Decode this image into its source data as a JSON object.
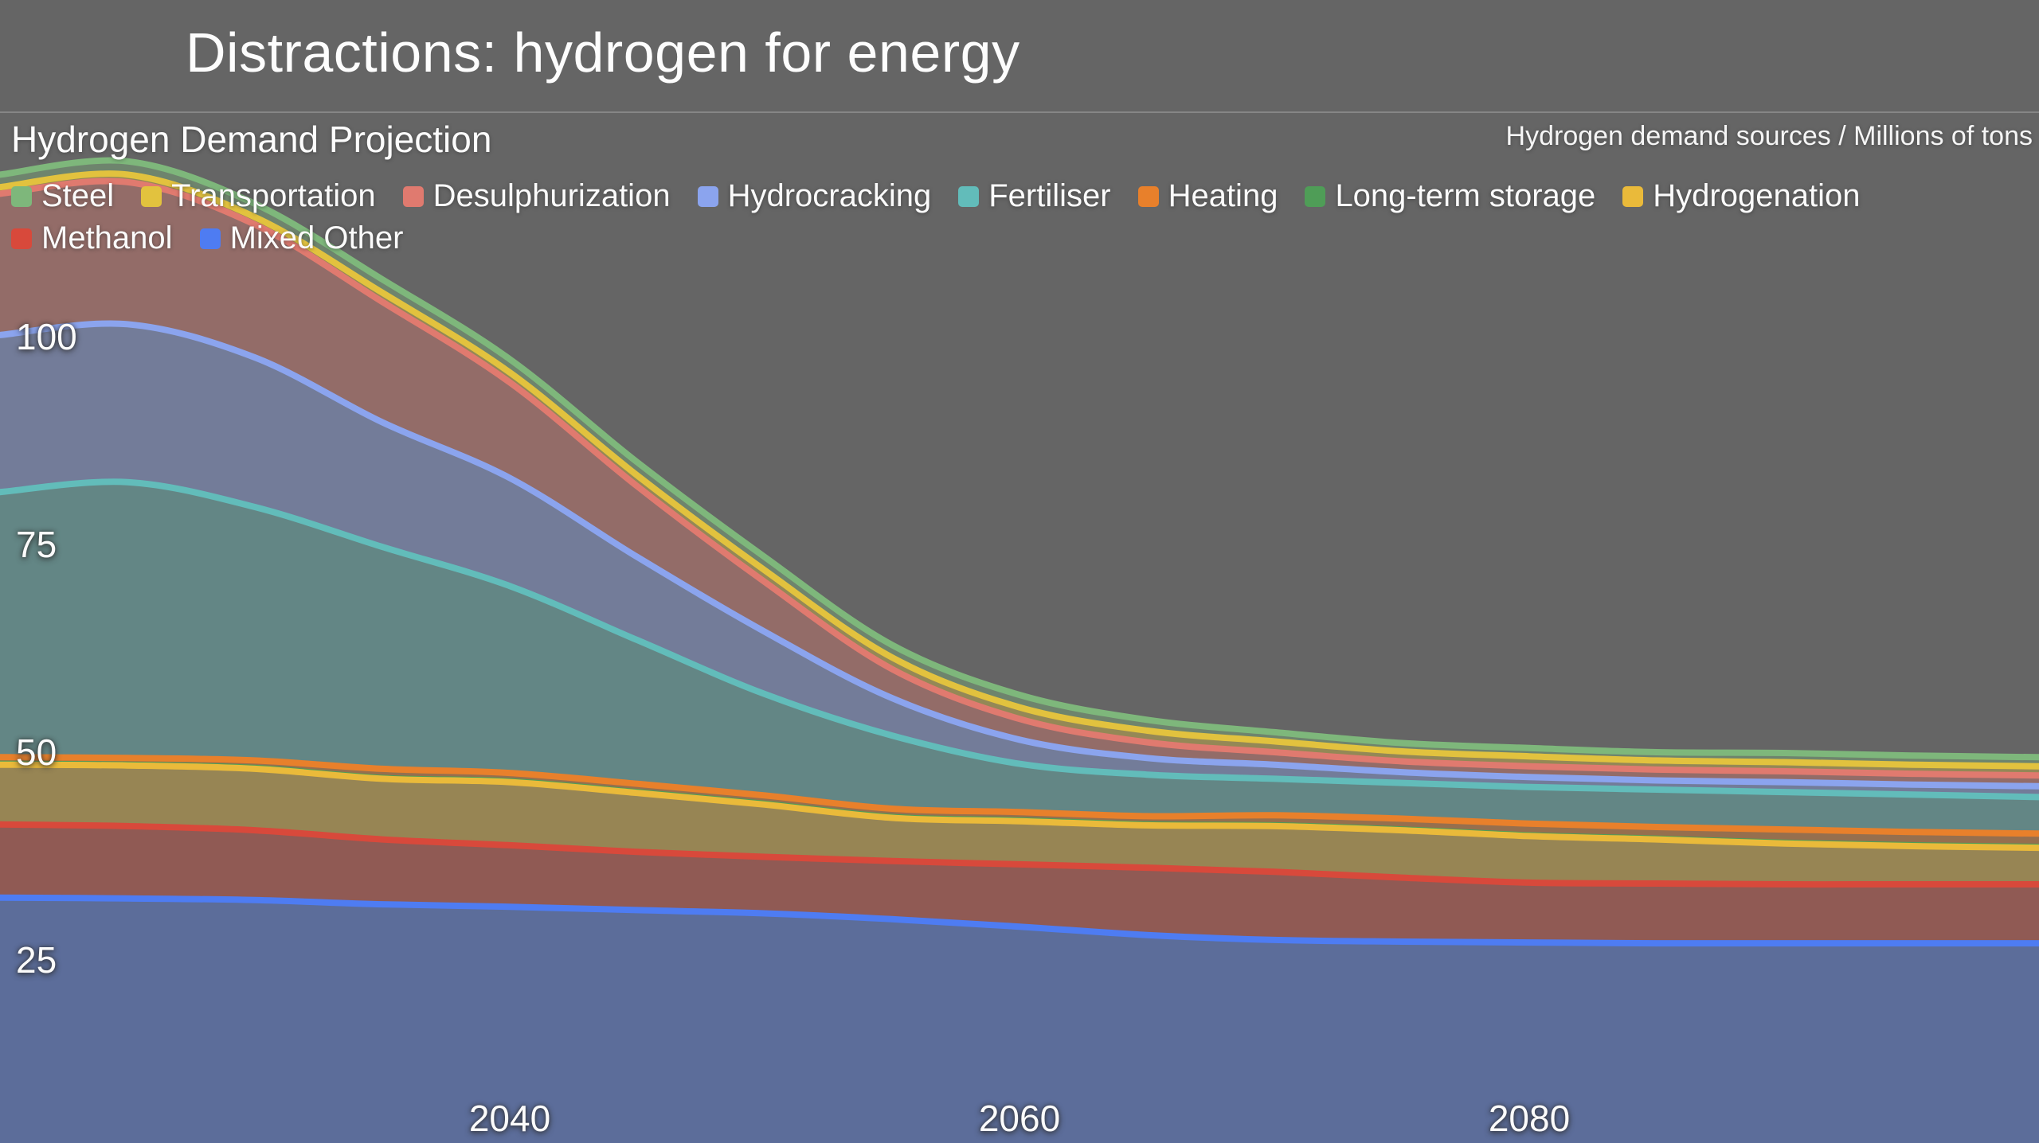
{
  "page": {
    "background": "#656565",
    "title": "Distractions: hydrogen for energy"
  },
  "chart": {
    "subtitle": "Hydrogen Demand Projection",
    "units_caption": "Hydrogen demand sources / Millions of tons"
  },
  "chart_data": {
    "type": "area",
    "stacked": true,
    "title": "Hydrogen Demand Projection",
    "ylabel": "Hydrogen demand sources / Millions of tons",
    "xlabel": "",
    "x_range": [
      2020,
      2100
    ],
    "y_range_visible": [
      0,
      125
    ],
    "grid": false,
    "legend_position": "top",
    "x": [
      2020,
      2025,
      2030,
      2035,
      2040,
      2045,
      2050,
      2055,
      2060,
      2065,
      2070,
      2075,
      2080,
      2085,
      2090,
      2095,
      2100
    ],
    "x_ticks": [
      {
        "label": "2040",
        "value": 2040
      },
      {
        "label": "2060",
        "value": 2060
      },
      {
        "label": "2080",
        "value": 2080
      }
    ],
    "y_ticks": [
      {
        "label": "100",
        "value": 100
      },
      {
        "label": "75",
        "value": 75
      },
      {
        "label": "50",
        "value": 50
      },
      {
        "label": "25",
        "value": 25
      }
    ],
    "series_order_note": "listed top-of-stack first; rendered stacked from bottom (last item) up",
    "series": [
      {
        "name": "Steel",
        "color": "#7eb77b",
        "legend_row": 1,
        "values": [
          1.5,
          1.6,
          1.6,
          1.6,
          1.6,
          1.6,
          1.6,
          1.5,
          1.5,
          1.3,
          1.1,
          1.0,
          1.0,
          1.0,
          1.1,
          1.1,
          1.1
        ]
      },
      {
        "name": "Transportation",
        "color": "#e2c23e",
        "legend_row": 1,
        "values": [
          0.8,
          0.9,
          0.9,
          1.1,
          1.2,
          1.3,
          1.4,
          1.4,
          1.4,
          1.4,
          1.3,
          1.2,
          1.2,
          1.1,
          1.1,
          1.1,
          1.1
        ]
      },
      {
        "name": "Desulphurization",
        "color": "#e07a6f",
        "legend_row": 1,
        "values": [
          17.0,
          17.1,
          16.0,
          14.5,
          11.5,
          8.5,
          6.0,
          3.5,
          2.5,
          1.9,
          1.5,
          1.3,
          1.3,
          1.3,
          1.3,
          1.3,
          1.3
        ]
      },
      {
        "name": "Hydrocracking",
        "color": "#8ba4ee",
        "legend_row": 1,
        "values": [
          18.9,
          19.0,
          18.0,
          15.0,
          13.0,
          10.0,
          7.5,
          4.5,
          2.9,
          2.0,
          1.7,
          1.3,
          1.2,
          1.1,
          1.2,
          1.2,
          1.3
        ]
      },
      {
        "name": "Fertiliser",
        "color": "#62bcba",
        "legend_row": 1,
        "values": [
          31.9,
          33.2,
          30.5,
          26.7,
          22.5,
          17.3,
          12.2,
          8.8,
          5.8,
          5.0,
          4.4,
          4.3,
          4.4,
          4.5,
          4.5,
          4.5,
          4.4
        ]
      },
      {
        "name": "Heating",
        "color": "#e8802b",
        "legend_row": 1,
        "values": [
          0.8,
          0.8,
          0.9,
          1.1,
          1.0,
          1.0,
          1.0,
          1.0,
          1.0,
          1.0,
          1.2,
          1.3,
          1.4,
          1.4,
          1.6,
          1.6,
          1.6
        ]
      },
      {
        "name": "Long-term storage",
        "color": "#4f9d57",
        "legend_row": 1,
        "values": [
          0.1,
          0.1,
          0.1,
          0.1,
          0.1,
          0.1,
          0.1,
          0.1,
          0.1,
          0.1,
          0.1,
          0.1,
          0.1,
          0.1,
          0.1,
          0.1,
          0.1
        ]
      },
      {
        "name": "Hydrogenation",
        "color": "#eaba3a",
        "legend_row": 1,
        "values": [
          7.2,
          7.3,
          7.4,
          7.3,
          7.6,
          7.1,
          6.3,
          5.2,
          5.2,
          5.1,
          5.5,
          5.7,
          5.6,
          5.3,
          4.9,
          4.6,
          4.4
        ]
      },
      {
        "name": "Methanol",
        "color": "#d8493b",
        "legend_row": 2,
        "values": [
          8.8,
          8.7,
          8.4,
          7.8,
          7.4,
          7.0,
          6.8,
          7.0,
          7.5,
          8.1,
          8.2,
          7.7,
          7.2,
          7.2,
          7.1,
          7.1,
          7.1
        ]
      },
      {
        "name": "Mixed Other",
        "color": "#4e7cf2",
        "legend_row": 2,
        "values": [
          32.5,
          32.4,
          32.2,
          31.7,
          31.4,
          31.0,
          30.6,
          29.9,
          29.0,
          28.0,
          27.4,
          27.2,
          27.1,
          27.0,
          27.0,
          27.0,
          27.0
        ]
      }
    ]
  }
}
